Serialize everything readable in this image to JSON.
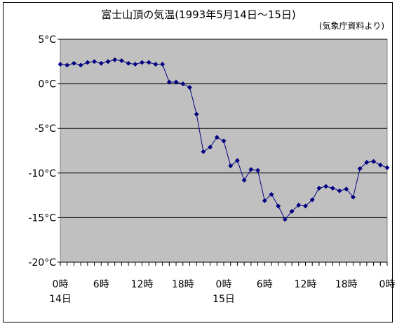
{
  "chart_data": {
    "type": "line",
    "title": "富士山頂の気温(1993年5月14日〜15日)",
    "source_note": "(気象庁資料より)",
    "y_ticks": [
      "5°C",
      "0°C",
      "-5°C",
      "-10°C",
      "-15°C",
      "-20°C"
    ],
    "y_tick_values": [
      5,
      0,
      -5,
      -10,
      -15,
      -20
    ],
    "ylim": [
      -20,
      5
    ],
    "x_ticks": [
      "0時",
      "6時",
      "12時",
      "18時",
      "0時",
      "6時",
      "12時",
      "18時",
      "0時"
    ],
    "x_tick_hours": [
      0,
      6,
      12,
      18,
      24,
      30,
      36,
      42,
      48
    ],
    "day_labels": [
      "14日",
      "15日"
    ],
    "day_label_hours": [
      0,
      24
    ],
    "xlim": [
      0,
      48
    ],
    "grid": "horizontal",
    "plot_background": "#c0c0c0",
    "series_color": "#000080",
    "series": [
      {
        "hours": [
          0,
          1,
          2,
          3,
          4,
          5,
          6,
          7,
          8,
          9,
          10,
          11,
          12,
          13,
          14,
          15,
          16,
          17,
          18,
          19,
          20,
          21,
          22,
          23,
          24,
          25,
          26,
          27,
          28,
          29,
          30,
          31,
          32,
          33,
          34,
          35,
          36,
          37,
          38,
          39,
          40,
          41,
          42,
          43,
          44,
          45,
          46,
          47,
          48
        ],
        "values": [
          2.2,
          2.1,
          2.3,
          2.1,
          2.4,
          2.5,
          2.3,
          2.5,
          2.7,
          2.6,
          2.3,
          2.2,
          2.4,
          2.4,
          2.2,
          2.2,
          0.2,
          0.2,
          0.0,
          -0.4,
          -3.4,
          -7.6,
          -7.1,
          -6.0,
          -6.4,
          -9.2,
          -8.6,
          -10.8,
          -9.6,
          -9.7,
          -13.1,
          -12.4,
          -13.7,
          -15.2,
          -14.3,
          -13.6,
          -13.7,
          -13.0,
          -11.7,
          -11.5,
          -11.7,
          -12.0,
          -11.8,
          -12.7,
          -9.5,
          -8.8,
          -8.7,
          -9.1,
          -9.4
        ]
      }
    ]
  }
}
